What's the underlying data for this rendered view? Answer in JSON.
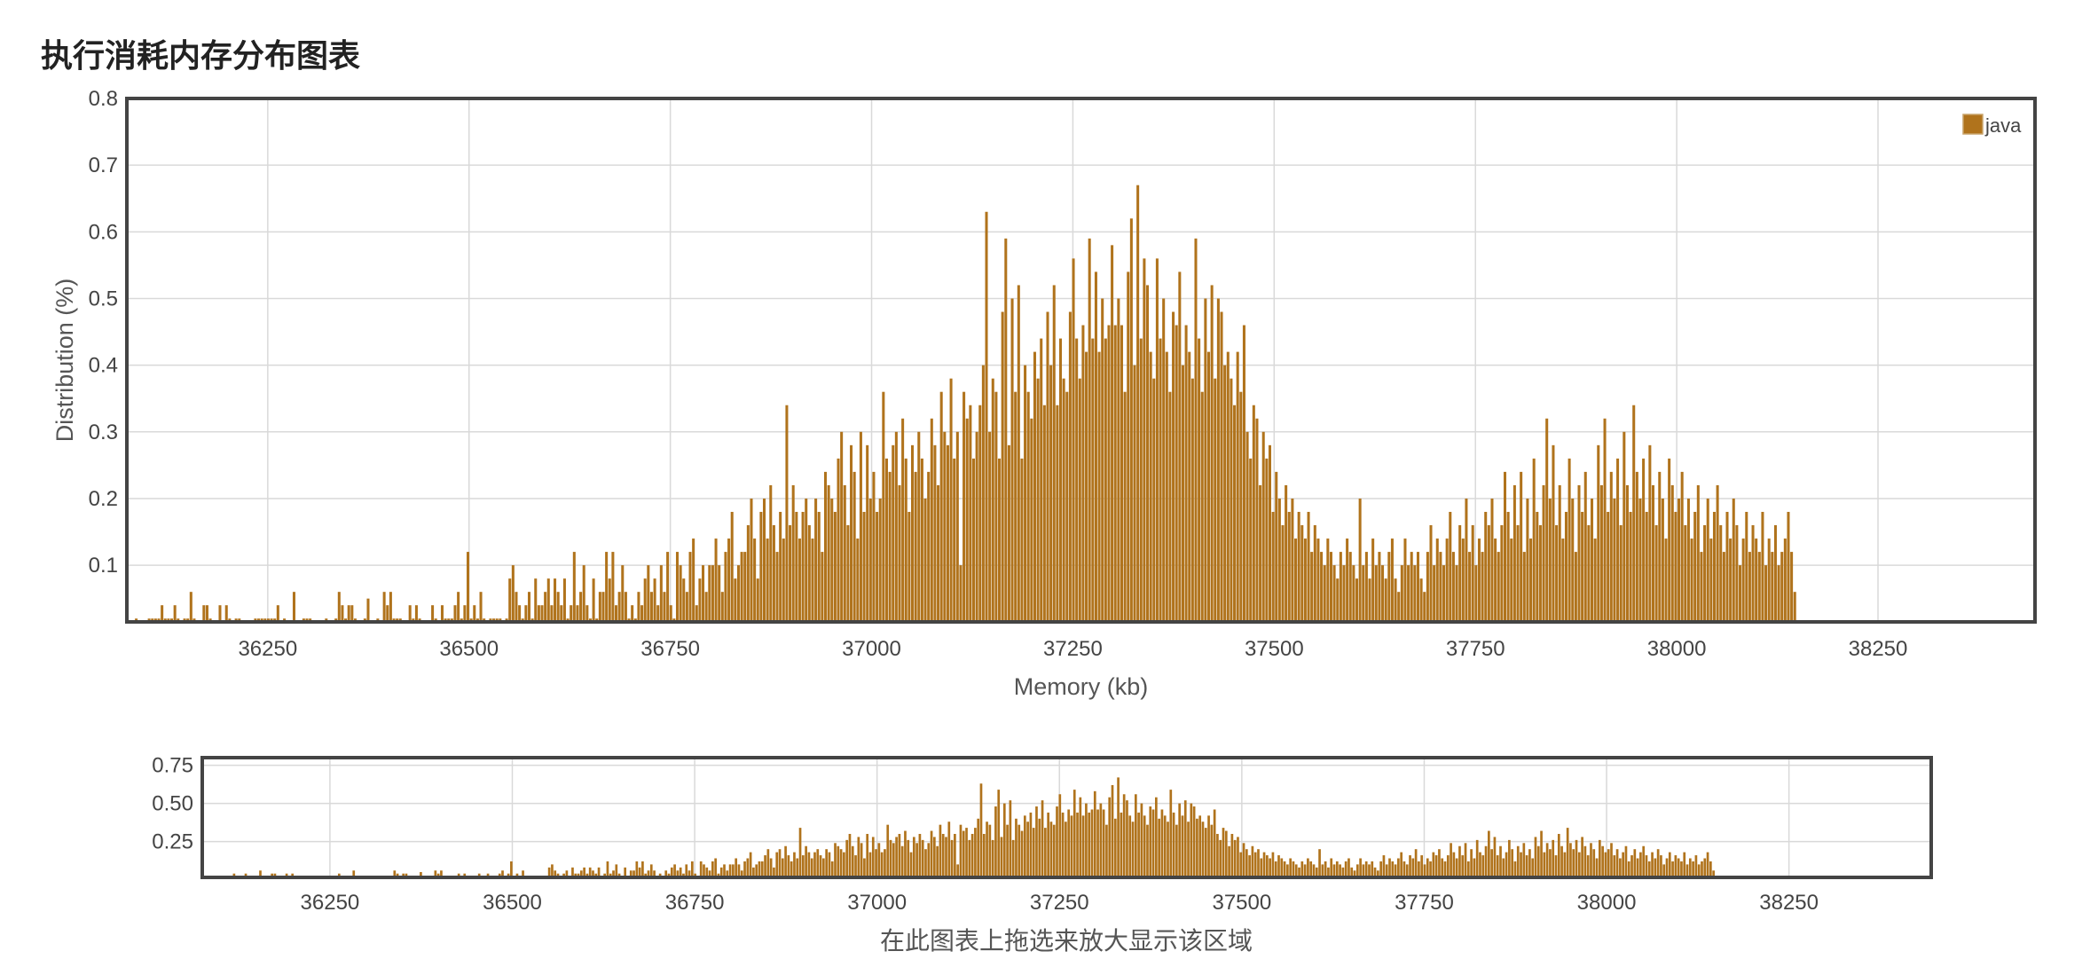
{
  "page": {
    "title": "执行消耗内存分布图表"
  },
  "chart_data": [
    {
      "type": "bar",
      "role": "main",
      "xlabel": "Memory (kb)",
      "ylabel": "Distribution (%)",
      "xlim": [
        36075,
        38445
      ],
      "ylim": [
        0.015,
        0.8
      ],
      "xticks": [
        36250,
        36500,
        36750,
        37000,
        37250,
        37500,
        37750,
        38000,
        38250
      ],
      "yticks": [
        0.1,
        0.2,
        0.3,
        0.4,
        0.5,
        0.6,
        0.7,
        0.8
      ],
      "grid": true,
      "legend": "top-right",
      "color": "#B0731C",
      "series": [
        {
          "name": "java",
          "bin_start": 36085,
          "bin_width": 4,
          "values": [
            0.02,
            0.01,
            0.01,
            0.01,
            0.02,
            0.02,
            0.02,
            0.02,
            0.04,
            0.02,
            0.02,
            0.02,
            0.04,
            0.02,
            0.01,
            0.02,
            0.02,
            0.06,
            0.02,
            0.01,
            0.01,
            0.04,
            0.04,
            0.02,
            0.01,
            0.01,
            0.04,
            0.01,
            0.04,
            0.02,
            0.01,
            0.02,
            0.02,
            0.01,
            0.01,
            0.01,
            0.01,
            0.02,
            0.02,
            0.02,
            0.02,
            0.02,
            0.02,
            0.02,
            0.04,
            0.01,
            0.02,
            0.01,
            0.01,
            0.06,
            0.01,
            0.01,
            0.02,
            0.02,
            0.02,
            0.01,
            0.01,
            0.01,
            0.01,
            0.02,
            0.01,
            0.01,
            0.02,
            0.06,
            0.04,
            0.02,
            0.04,
            0.04,
            0.02,
            0.01,
            0.01,
            0.02,
            0.05,
            0.01,
            0.01,
            0.02,
            0.01,
            0.06,
            0.04,
            0.06,
            0.02,
            0.02,
            0.02,
            0.01,
            0.01,
            0.04,
            0.02,
            0.04,
            0.02,
            0.01,
            0.01,
            0.01,
            0.04,
            0.02,
            0.01,
            0.04,
            0.02,
            0.02,
            0.02,
            0.04,
            0.06,
            0.02,
            0.04,
            0.12,
            0.02,
            0.04,
            0.02,
            0.06,
            0.02,
            0.01,
            0.02,
            0.02,
            0.02,
            0.02,
            0.01,
            0.02,
            0.08,
            0.1,
            0.06,
            0.04,
            0.02,
            0.04,
            0.06,
            0.02,
            0.08,
            0.04,
            0.04,
            0.06,
            0.08,
            0.04,
            0.08,
            0.06,
            0.04,
            0.08,
            0.02,
            0.04,
            0.12,
            0.04,
            0.06,
            0.1,
            0.04,
            0.02,
            0.08,
            0.02,
            0.06,
            0.06,
            0.12,
            0.08,
            0.12,
            0.04,
            0.06,
            0.1,
            0.06,
            0.02,
            0.04,
            0.02,
            0.06,
            0.04,
            0.08,
            0.1,
            0.06,
            0.08,
            0.04,
            0.1,
            0.06,
            0.12,
            0.04,
            0.02,
            0.12,
            0.1,
            0.08,
            0.06,
            0.12,
            0.14,
            0.04,
            0.08,
            0.1,
            0.06,
            0.1,
            0.1,
            0.14,
            0.1,
            0.06,
            0.12,
            0.14,
            0.18,
            0.08,
            0.1,
            0.12,
            0.12,
            0.16,
            0.2,
            0.14,
            0.08,
            0.18,
            0.2,
            0.14,
            0.22,
            0.16,
            0.12,
            0.18,
            0.14,
            0.34,
            0.16,
            0.22,
            0.18,
            0.14,
            0.18,
            0.2,
            0.16,
            0.14,
            0.2,
            0.18,
            0.12,
            0.24,
            0.22,
            0.2,
            0.18,
            0.26,
            0.3,
            0.22,
            0.16,
            0.28,
            0.24,
            0.14,
            0.3,
            0.18,
            0.28,
            0.2,
            0.24,
            0.18,
            0.2,
            0.36,
            0.26,
            0.24,
            0.28,
            0.3,
            0.22,
            0.32,
            0.26,
            0.18,
            0.28,
            0.24,
            0.3,
            0.26,
            0.2,
            0.24,
            0.32,
            0.28,
            0.22,
            0.36,
            0.3,
            0.28,
            0.38,
            0.26,
            0.3,
            0.1,
            0.36,
            0.32,
            0.34,
            0.26,
            0.3,
            0.34,
            0.4,
            0.63,
            0.3,
            0.38,
            0.36,
            0.26,
            0.48,
            0.59,
            0.28,
            0.5,
            0.36,
            0.52,
            0.26,
            0.4,
            0.36,
            0.32,
            0.42,
            0.38,
            0.44,
            0.34,
            0.48,
            0.4,
            0.52,
            0.34,
            0.44,
            0.38,
            0.36,
            0.48,
            0.56,
            0.44,
            0.38,
            0.46,
            0.42,
            0.59,
            0.44,
            0.54,
            0.42,
            0.5,
            0.44,
            0.46,
            0.58,
            0.46,
            0.5,
            0.46,
            0.36,
            0.54,
            0.62,
            0.4,
            0.67,
            0.44,
            0.56,
            0.52,
            0.42,
            0.38,
            0.56,
            0.44,
            0.5,
            0.42,
            0.36,
            0.48,
            0.46,
            0.54,
            0.4,
            0.46,
            0.42,
            0.38,
            0.59,
            0.44,
            0.36,
            0.5,
            0.42,
            0.52,
            0.38,
            0.5,
            0.48,
            0.4,
            0.42,
            0.38,
            0.34,
            0.42,
            0.36,
            0.46,
            0.3,
            0.26,
            0.34,
            0.32,
            0.22,
            0.3,
            0.26,
            0.28,
            0.18,
            0.24,
            0.2,
            0.16,
            0.22,
            0.18,
            0.2,
            0.14,
            0.18,
            0.16,
            0.14,
            0.18,
            0.12,
            0.16,
            0.14,
            0.12,
            0.1,
            0.14,
            0.12,
            0.1,
            0.08,
            0.12,
            0.1,
            0.14,
            0.12,
            0.1,
            0.08,
            0.2,
            0.1,
            0.12,
            0.08,
            0.14,
            0.1,
            0.12,
            0.1,
            0.08,
            0.12,
            0.14,
            0.08,
            0.06,
            0.1,
            0.14,
            0.1,
            0.12,
            0.1,
            0.12,
            0.08,
            0.06,
            0.12,
            0.16,
            0.1,
            0.14,
            0.12,
            0.1,
            0.14,
            0.18,
            0.12,
            0.1,
            0.16,
            0.14,
            0.2,
            0.12,
            0.16,
            0.1,
            0.14,
            0.12,
            0.18,
            0.16,
            0.2,
            0.14,
            0.12,
            0.16,
            0.24,
            0.18,
            0.14,
            0.22,
            0.16,
            0.24,
            0.12,
            0.2,
            0.14,
            0.26,
            0.18,
            0.16,
            0.22,
            0.32,
            0.2,
            0.28,
            0.16,
            0.22,
            0.14,
            0.18,
            0.26,
            0.2,
            0.12,
            0.22,
            0.18,
            0.24,
            0.16,
            0.2,
            0.14,
            0.28,
            0.22,
            0.32,
            0.18,
            0.24,
            0.2,
            0.26,
            0.16,
            0.3,
            0.22,
            0.18,
            0.34,
            0.24,
            0.2,
            0.26,
            0.18,
            0.28,
            0.22,
            0.16,
            0.24,
            0.2,
            0.14,
            0.26,
            0.22,
            0.18,
            0.2,
            0.24,
            0.16,
            0.2,
            0.14,
            0.18,
            0.22,
            0.12,
            0.16,
            0.2,
            0.14,
            0.18,
            0.22,
            0.16,
            0.12,
            0.18,
            0.14,
            0.2,
            0.16,
            0.1,
            0.14,
            0.18,
            0.12,
            0.16,
            0.14,
            0.12,
            0.18,
            0.1,
            0.14,
            0.12,
            0.16,
            0.1,
            0.12,
            0.14,
            0.18,
            0.12,
            0.06
          ]
        }
      ]
    },
    {
      "type": "bar",
      "role": "navigator",
      "xlim": [
        36075,
        38445
      ],
      "ylim": [
        0.015,
        0.8
      ],
      "xticks": [
        36250,
        36500,
        36750,
        37000,
        37250,
        37500,
        37750,
        38000,
        38250
      ],
      "yticks": [
        0.25,
        0.5,
        0.75
      ],
      "ytick_labels": [
        "0.25",
        "0.50",
        "0.75"
      ],
      "hint": "在此图表上拖选来放大显示该区域"
    }
  ]
}
